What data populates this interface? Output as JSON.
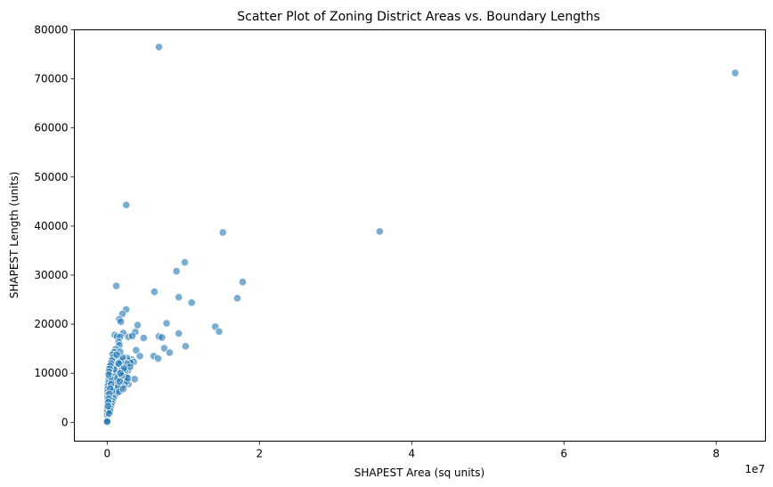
{
  "chart_data": {
    "type": "scatter",
    "title": "Scatter Plot of Zoning District Areas vs. Boundary Lengths",
    "xlabel": "SHAPEST Area (sq units)",
    "ylabel": "SHAPEST Length (units)",
    "x_offset_label": "1e7",
    "xlim": [
      -4300000,
      86500000
    ],
    "ylim": [
      -3800000,
      80000
    ],
    "ylim_note": "",
    "x_ticks": [
      0,
      20000000,
      40000000,
      60000000,
      80000000
    ],
    "x_tick_labels": [
      "0",
      "2",
      "4",
      "6",
      "8"
    ],
    "y_ticks": [
      0,
      10000,
      20000,
      30000,
      40000,
      50000,
      60000,
      70000,
      80000
    ],
    "y_tick_labels": [
      "0",
      "10000",
      "20000",
      "30000",
      "40000",
      "50000",
      "60000",
      "70000",
      "80000"
    ],
    "grid": false,
    "marker_color": "#1f77b4",
    "points": [
      [
        6800000,
        76500
      ],
      [
        82500000,
        71200
      ],
      [
        2500000,
        44300
      ],
      [
        35800000,
        38900
      ],
      [
        15200000,
        38700
      ],
      [
        10200000,
        32600
      ],
      [
        9100000,
        30800
      ],
      [
        17800000,
        28600
      ],
      [
        1200000,
        27800
      ],
      [
        6200000,
        26600
      ],
      [
        9400000,
        25500
      ],
      [
        17100000,
        25300
      ],
      [
        11100000,
        24400
      ],
      [
        2500000,
        23000
      ],
      [
        2000000,
        22100
      ],
      [
        1600000,
        21000
      ],
      [
        1800000,
        20500
      ],
      [
        7800000,
        20200
      ],
      [
        4000000,
        19800
      ],
      [
        14200000,
        19500
      ],
      [
        14700000,
        18500
      ],
      [
        3700000,
        18400
      ],
      [
        9400000,
        18100
      ],
      [
        2100000,
        18200
      ],
      [
        1000000,
        17800
      ],
      [
        1300000,
        17500
      ],
      [
        1700000,
        17400
      ],
      [
        2800000,
        17400
      ],
      [
        3300000,
        17600
      ],
      [
        4800000,
        17200
      ],
      [
        6800000,
        17500
      ],
      [
        7200000,
        17300
      ],
      [
        10300000,
        15500
      ],
      [
        7500000,
        15100
      ],
      [
        8200000,
        14200
      ],
      [
        6100000,
        13500
      ],
      [
        6700000,
        13000
      ],
      [
        4300000,
        13500
      ],
      [
        3800000,
        14700
      ],
      [
        3200000,
        12800
      ],
      [
        3500000,
        12300
      ],
      [
        2900000,
        12500
      ],
      [
        2600000,
        13100
      ],
      [
        3600000,
        8800
      ],
      [
        2300000,
        11300
      ],
      [
        2400000,
        9200
      ],
      [
        2800000,
        7800
      ],
      [
        2700000,
        10500
      ],
      [
        3100000,
        12100
      ],
      [
        2100000,
        12700
      ],
      [
        2600000,
        11900
      ],
      [
        1500000,
        16400
      ],
      [
        1600000,
        15700
      ],
      [
        1100000,
        14900
      ],
      [
        900000,
        14300
      ],
      [
        1400000,
        13300
      ],
      [
        1200000,
        12800
      ],
      [
        800000,
        12100
      ],
      [
        600000,
        11600
      ],
      [
        500000,
        11000
      ],
      [
        700000,
        10400
      ],
      [
        400000,
        9800
      ],
      [
        300000,
        9200
      ],
      [
        200000,
        8600
      ],
      [
        150000,
        8000
      ],
      [
        100000,
        7400
      ],
      [
        80000,
        6800
      ],
      [
        60000,
        6200
      ],
      [
        50000,
        5600
      ],
      [
        40000,
        5000
      ],
      [
        30000,
        4400
      ],
      [
        20000,
        3800
      ],
      [
        15000,
        3200
      ],
      [
        10000,
        2600
      ],
      [
        8000,
        2000
      ],
      [
        5000,
        1400
      ],
      [
        3000,
        900
      ],
      [
        2000,
        500
      ],
      [
        1000,
        250
      ],
      [
        500,
        100
      ],
      [
        1300000,
        10200
      ],
      [
        1500000,
        9600
      ],
      [
        1800000,
        8900
      ],
      [
        2000000,
        8200
      ],
      [
        1700000,
        7600
      ],
      [
        1900000,
        7100
      ],
      [
        1400000,
        6500
      ],
      [
        1200000,
        6000
      ],
      [
        1000000,
        5400
      ],
      [
        800000,
        4900
      ],
      [
        700000,
        4300
      ],
      [
        600000,
        3800
      ],
      [
        500000,
        3300
      ],
      [
        400000,
        2800
      ],
      [
        350000,
        2300
      ],
      [
        250000,
        1800
      ],
      [
        1100000,
        11500
      ],
      [
        900000,
        10800
      ],
      [
        1000000,
        9300
      ],
      [
        1300000,
        8500
      ],
      [
        1600000,
        11800
      ],
      [
        1900000,
        10700
      ],
      [
        2200000,
        9900
      ],
      [
        2500000,
        9400
      ],
      [
        2300000,
        7700
      ],
      [
        2600000,
        8400
      ],
      [
        1800000,
        12400
      ],
      [
        2000000,
        13300
      ],
      [
        1700000,
        14400
      ],
      [
        1500000,
        12000
      ],
      [
        1100000,
        8000
      ],
      [
        900000,
        7000
      ],
      [
        700000,
        6400
      ],
      [
        600000,
        8700
      ],
      [
        500000,
        7800
      ],
      [
        400000,
        6900
      ],
      [
        300000,
        5800
      ],
      [
        200000,
        4800
      ],
      [
        150000,
        4100
      ],
      [
        100000,
        3300
      ],
      [
        700000,
        13800
      ],
      [
        800000,
        13200
      ],
      [
        600000,
        12600
      ],
      [
        500000,
        12000
      ],
      [
        400000,
        11500
      ],
      [
        300000,
        10900
      ],
      [
        250000,
        10300
      ],
      [
        200000,
        9700
      ],
      [
        1250000,
        13800
      ],
      [
        1350000,
        9000
      ],
      [
        1450000,
        7300
      ],
      [
        1550000,
        6200
      ],
      [
        2100000,
        6800
      ],
      [
        2400000,
        10700
      ],
      [
        2700000,
        9000
      ],
      [
        3000000,
        11300
      ],
      [
        2200000,
        11000
      ],
      [
        1900000,
        9500
      ],
      [
        1650000,
        8300
      ],
      [
        1750000,
        10000
      ]
    ]
  }
}
